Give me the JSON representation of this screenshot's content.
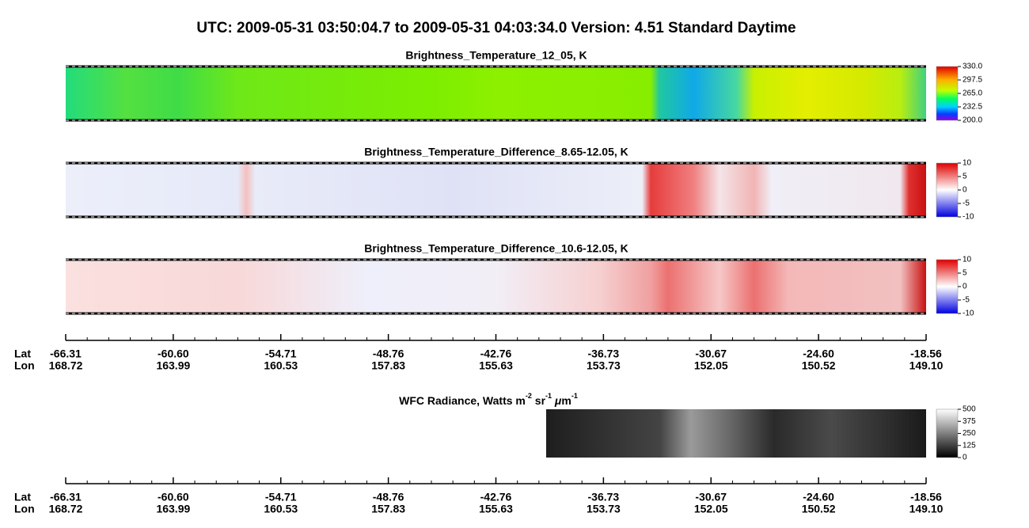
{
  "header": {
    "title": "UTC:  2009-05-31   03:50:04.7  to  2009-05-31   04:03:34.0    Version: 4.51  Standard Daytime"
  },
  "panels": [
    {
      "title": "Brightness_Temperature_12_05, K",
      "colorbar_ticks": [
        "330.0",
        "297.5",
        "265.0",
        "232.5",
        "200.0"
      ]
    },
    {
      "title": "Brightness_Temperature_Difference_8.65-12.05, K",
      "colorbar_ticks": [
        "10",
        "5",
        "0",
        "-5",
        "-10"
      ]
    },
    {
      "title": "Brightness_Temperature_Difference_10.6-12.05, K",
      "colorbar_ticks": [
        "10",
        "5",
        "0",
        "-5",
        "-10"
      ]
    }
  ],
  "axes": [
    {
      "lat_label": "Lat",
      "lon_label": "Lon",
      "lat": [
        "-66.31",
        "-60.60",
        "-54.71",
        "-48.76",
        "-42.76",
        "-36.73",
        "-30.67",
        "-24.60",
        "-18.56"
      ],
      "lon": [
        "168.72",
        "163.99",
        "160.53",
        "157.83",
        "155.63",
        "153.73",
        "152.05",
        "150.52",
        "149.10"
      ]
    },
    {
      "lat_label": "Lat",
      "lon_label": "Lon",
      "lat": [
        "-66.31",
        "-60.60",
        "-54.71",
        "-48.76",
        "-42.76",
        "-36.73",
        "-30.67",
        "-24.60",
        "-18.56"
      ],
      "lon": [
        "168.72",
        "163.99",
        "160.53",
        "157.83",
        "155.63",
        "153.73",
        "152.05",
        "150.52",
        "149.10"
      ]
    }
  ],
  "wfc": {
    "title_parts": [
      "WFC Radiance, Watts m",
      "-2",
      " sr",
      "-1",
      " ",
      "μ",
      "m",
      "-1"
    ],
    "colorbar_ticks": [
      "500",
      "375",
      "250",
      "125",
      "0"
    ]
  }
}
